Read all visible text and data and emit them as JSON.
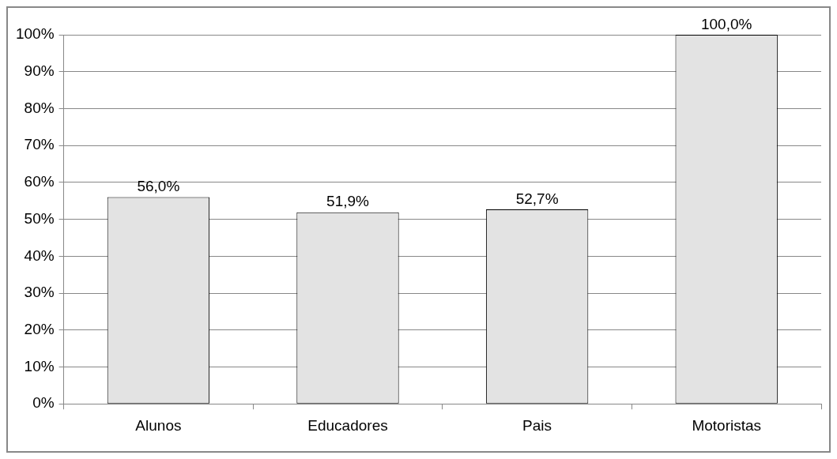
{
  "chart_data": {
    "type": "bar",
    "categories": [
      "Alunos",
      "Educadores",
      "Pais",
      "Motoristas"
    ],
    "values": [
      56.0,
      51.9,
      52.7,
      100.0
    ],
    "value_labels": [
      "56,0%",
      "51,9%",
      "52,7%",
      "100,0%"
    ],
    "color": "#e3e3e3",
    "ylim": [
      0,
      100
    ],
    "yticks": [
      {
        "value": 0,
        "label": "0%"
      },
      {
        "value": 10,
        "label": "10%"
      },
      {
        "value": 20,
        "label": "20%"
      },
      {
        "value": 30,
        "label": "30%"
      },
      {
        "value": 40,
        "label": "40%"
      },
      {
        "value": 50,
        "label": "50%"
      },
      {
        "value": 60,
        "label": "60%"
      },
      {
        "value": 70,
        "label": "70%"
      },
      {
        "value": 80,
        "label": "80%"
      },
      {
        "value": 90,
        "label": "90%"
      },
      {
        "value": 100,
        "label": "100%"
      }
    ],
    "grid": "y",
    "legend": false
  }
}
